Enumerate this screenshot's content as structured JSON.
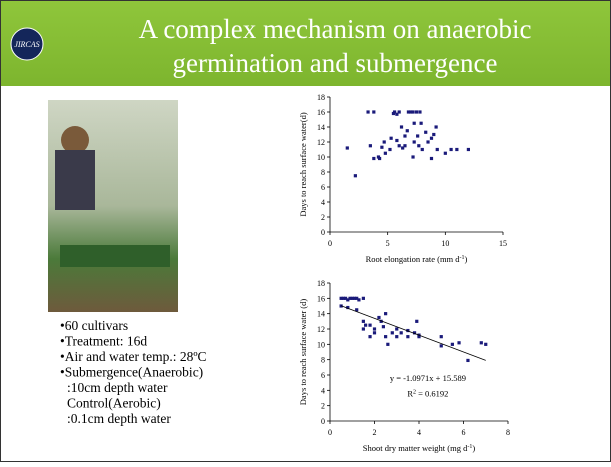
{
  "logo": "JIRCAS",
  "title": [
    "A complex mechanism on anaerobic",
    "germination and submergence"
  ],
  "bullets": [
    {
      "bullet": "•",
      "text": "60 cultivars"
    },
    {
      "bullet": "•",
      "text": "Treatment: 16d"
    },
    {
      "bullet": "•",
      "text": "Air and water temp.: 28ºC"
    },
    {
      "bullet": "•",
      "text": "Submergence(Anaerobic)"
    },
    {
      "text": ":10cm depth water"
    },
    {
      "text": "Control(Aerobic)"
    },
    {
      "text": ":0.1cm depth water"
    }
  ],
  "chart_data": [
    {
      "type": "scatter",
      "color": "#1a1a7a",
      "ylabel": "Days to reach surface water(d)",
      "xlabel": {
        "text": "Root elongation rate (mm d",
        "sup": "-1",
        "tail": ")"
      },
      "xlim": [
        0,
        15
      ],
      "xticks": [
        0,
        5,
        10,
        15
      ],
      "ylim": [
        0,
        18
      ],
      "yticks": [
        0,
        2,
        4,
        6,
        8,
        10,
        12,
        14,
        16,
        18
      ],
      "x": [
        1.5,
        2.2,
        3.3,
        3.8,
        3.5,
        3.8,
        4.2,
        4.3,
        4.5,
        4.7,
        4.8,
        5.2,
        5.3,
        5.5,
        5.6,
        5.8,
        6,
        6.2,
        6.3,
        6.5,
        6.5,
        6.7,
        6.8,
        7,
        7.2,
        7.3,
        7.3,
        7.5,
        7.6,
        7.7,
        7.8,
        7.9,
        7.2,
        8,
        8.3,
        8.5,
        8.8,
        8.8,
        9,
        9.2,
        9.3,
        10,
        10.5,
        11,
        12,
        6,
        5.8
      ],
      "values": [
        11.2,
        7.5,
        16,
        16,
        11.5,
        9.8,
        10,
        9.8,
        11.3,
        12,
        10.5,
        11,
        12.5,
        15.8,
        16,
        15.7,
        16,
        14,
        11.2,
        12.8,
        11.5,
        13.5,
        16,
        16,
        16,
        14.5,
        12,
        16,
        12.8,
        11.5,
        16,
        14.5,
        10,
        11,
        13.3,
        12,
        12.5,
        9.8,
        13,
        14,
        11,
        10.5,
        11,
        11,
        11,
        11.5,
        12.2
      ]
    },
    {
      "type": "scatter",
      "color": "#1a1a7a",
      "ylabel": "Days to reach surface water (d)",
      "xlabel": {
        "text": "Shoot dry matter weight (mg d",
        "sup": "-1",
        "tail": ")"
      },
      "xlim": [
        0,
        8
      ],
      "xticks": [
        0,
        2,
        4,
        6,
        8
      ],
      "ylim": [
        0,
        18
      ],
      "yticks": [
        0,
        2,
        4,
        6,
        8,
        10,
        12,
        14,
        16,
        18
      ],
      "x": [
        0.5,
        0.6,
        0.7,
        0.8,
        0.9,
        1,
        1.1,
        1.2,
        1.3,
        1.5,
        0.5,
        0.8,
        1.2,
        1.5,
        1.5,
        1.6,
        1.8,
        1.8,
        2,
        2,
        2.2,
        2.3,
        2.4,
        2.5,
        2.6,
        2.5,
        2.8,
        3,
        3,
        3.2,
        3.5,
        3.5,
        3.8,
        3.9,
        4,
        4,
        5,
        5,
        5.5,
        5.8,
        6.2,
        6.8,
        7
      ],
      "values": [
        16,
        16,
        16,
        15.8,
        16,
        16,
        16,
        16,
        15.8,
        16,
        15,
        14.8,
        14.5,
        13,
        12,
        12.5,
        12.5,
        11,
        12,
        11.5,
        13.5,
        13,
        12.3,
        11,
        10,
        14,
        11.5,
        12,
        11,
        11.5,
        11,
        11.8,
        11.5,
        13,
        11.2,
        11,
        11,
        9.8,
        10,
        10.2,
        7.9,
        10.2,
        10
      ],
      "trendline": {
        "x": [
          0.5,
          7
        ],
        "y": [
          15.04,
          7.91
        ]
      },
      "equation": "y = -1.0971x + 15.589",
      "r2": {
        "text": "R",
        "sup": "2",
        "tail": " = 0.6192"
      }
    }
  ]
}
